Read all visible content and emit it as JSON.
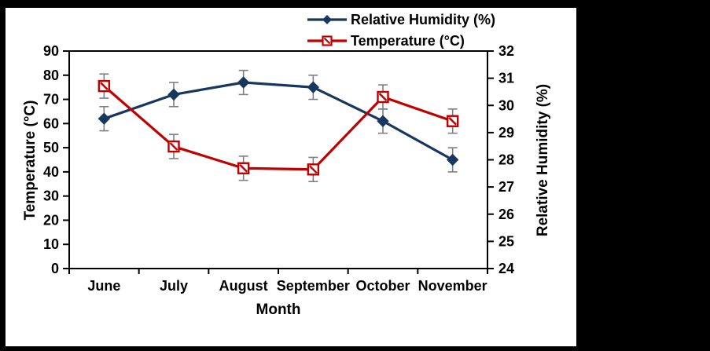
{
  "chart_data": {
    "type": "line",
    "title": "",
    "categories": [
      "June",
      "July",
      "August",
      "September",
      "October",
      "November"
    ],
    "x_axis_title": "Month",
    "left_axis": {
      "title": "Temperature (°C)",
      "min": 0,
      "max": 90,
      "ticks": [
        0,
        10,
        20,
        30,
        40,
        50,
        60,
        70,
        80,
        90
      ]
    },
    "right_axis": {
      "title": "Relative Humidity (%)",
      "min": 24,
      "max": 32,
      "ticks": [
        24,
        25,
        26,
        27,
        28,
        29,
        30,
        31,
        32
      ]
    },
    "grid": false,
    "legend_position": "top-center",
    "series": [
      {
        "name": "Relative Humidity (%)",
        "color": "#17375E",
        "marker": "diamond",
        "values_on_left_axis_scale": [
          62,
          72,
          77,
          75,
          61,
          45
        ],
        "values_on_right_axis_scale": [
          29.5,
          30.4,
          30.8,
          30.7,
          29.4,
          28.0
        ],
        "error_bar_left_scale": 5
      },
      {
        "name": "Temperature (°C)",
        "color": "#C00000",
        "marker": "hatched-square",
        "values_on_left_axis_scale": [
          75.5,
          50.5,
          41.5,
          41,
          71,
          61
        ],
        "values_on_right_axis_scale": [
          30.7,
          28.5,
          27.7,
          27.6,
          30.3,
          29.4
        ],
        "error_bar_left_scale": 5
      }
    ],
    "error_bar_color": "#7F7F7F",
    "axis_color": "#000000",
    "text_color": "#000000"
  },
  "colors": {
    "page_background": "#000000",
    "panel_background": "#FFFFFF"
  }
}
